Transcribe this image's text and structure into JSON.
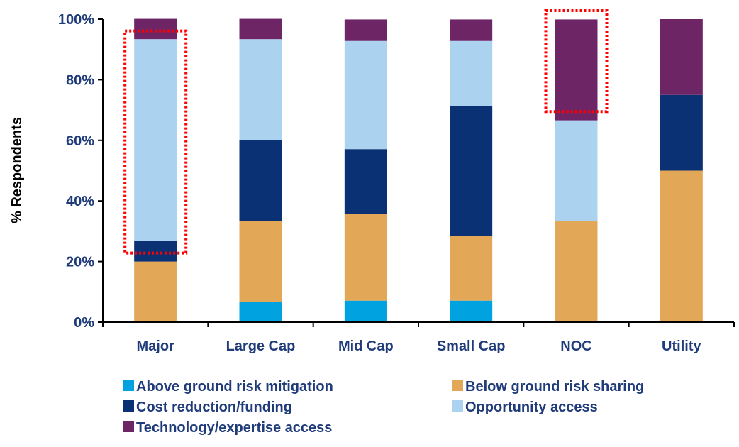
{
  "chart_data": {
    "type": "bar",
    "stacked": true,
    "ylabel": "% Respondents",
    "xlabel": "",
    "ylim": [
      0,
      100
    ],
    "yticks": [
      "0%",
      "20%",
      "40%",
      "60%",
      "80%",
      "100%"
    ],
    "categories": [
      "Major",
      "Large Cap",
      "Mid Cap",
      "Small Cap",
      "NOC",
      "Utility"
    ],
    "series": [
      {
        "name": "Above ground risk mitigation",
        "color": "#00a3e0",
        "values": [
          0,
          6.7,
          7.1,
          7.1,
          0,
          0
        ]
      },
      {
        "name": "Below ground risk sharing",
        "color": "#e3a857",
        "values": [
          20,
          26.7,
          28.6,
          21.4,
          33.3,
          50
        ]
      },
      {
        "name": "Cost reduction/funding",
        "color": "#0b3175",
        "values": [
          6.7,
          26.7,
          21.4,
          42.9,
          0,
          25
        ]
      },
      {
        "name": "Opportunity access",
        "color": "#abd3ef",
        "values": [
          66.7,
          33.3,
          35.7,
          21.4,
          33.3,
          0
        ]
      },
      {
        "name": "Technology/expertise access",
        "color": "#6e2566",
        "values": [
          6.7,
          6.7,
          7.1,
          7.1,
          33.3,
          25
        ]
      }
    ],
    "highlights": [
      {
        "category": "Major",
        "from": 20,
        "to": 93.3,
        "color": "#ff0000",
        "style": "dotted"
      },
      {
        "category": "NOC",
        "from": 66.7,
        "to": 100,
        "color": "#ff0000",
        "style": "dotted"
      }
    ],
    "legend_position": "bottom",
    "grid": false,
    "text_color": "#1f3b7a"
  }
}
